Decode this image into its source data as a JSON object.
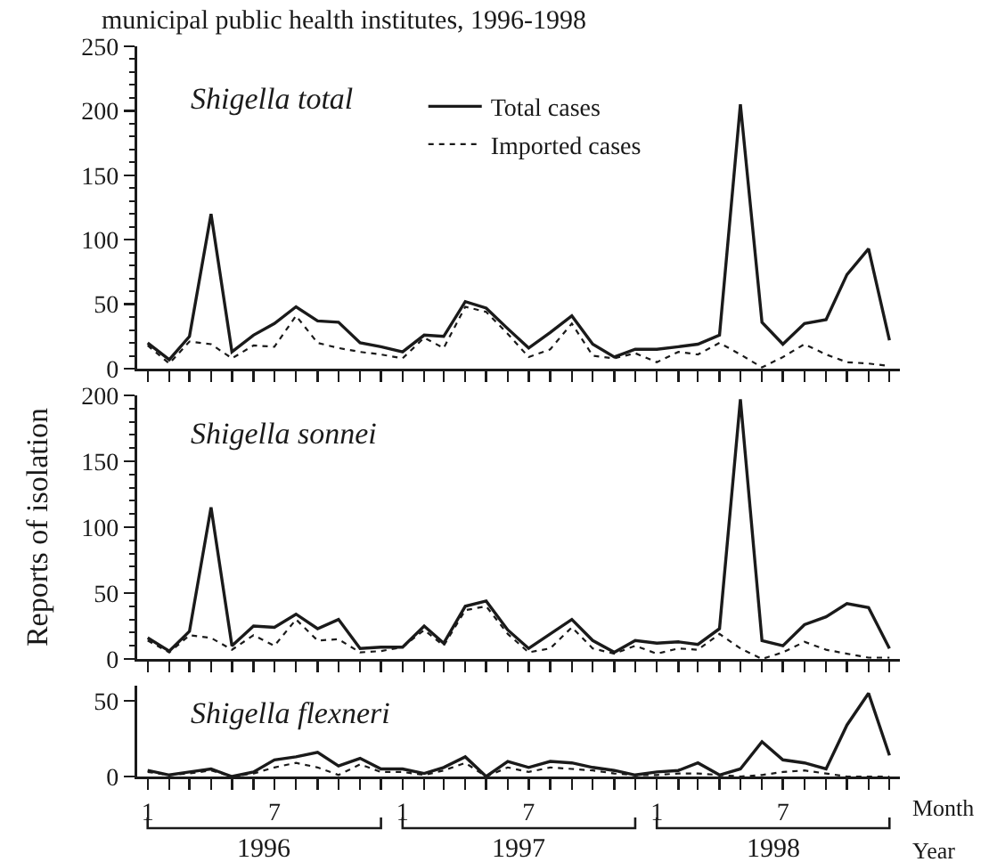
{
  "chart_data": [
    {
      "type": "line",
      "title": "Shigella total",
      "annotations": [
        "municipal public health institutes, 1996-1998"
      ],
      "legend": "top",
      "tick_labels": "y",
      "x": [
        "1996-01",
        "1996-02",
        "1996-03",
        "1996-04",
        "1996-05",
        "1996-06",
        "1996-07",
        "1996-08",
        "1996-09",
        "1996-10",
        "1996-11",
        "1996-12",
        "1997-01",
        "1997-02",
        "1997-03",
        "1997-04",
        "1997-05",
        "1997-06",
        "1997-07",
        "1997-08",
        "1997-09",
        "1997-10",
        "1997-11",
        "1997-12",
        "1998-01",
        "1998-02",
        "1998-03",
        "1998-04",
        "1998-05",
        "1998-06",
        "1998-07",
        "1998-08",
        "1998-09",
        "1998-10",
        "1998-11",
        "1998-12"
      ],
      "series": [
        {
          "name": "Total cases",
          "color": "#1a1a1a",
          "line_style": "solid",
          "values": [
            20,
            7,
            25,
            120,
            13,
            26,
            35,
            48,
            37,
            36,
            20,
            17,
            13,
            26,
            25,
            52,
            47,
            31,
            16,
            28,
            41,
            19,
            9,
            15,
            15,
            17,
            19,
            26,
            205,
            36,
            19,
            35,
            38,
            73,
            93,
            22
          ]
        },
        {
          "name": "Imported cases",
          "color": "#1a1a1a",
          "line_style": "dotted",
          "values": [
            18,
            4,
            21,
            19,
            8,
            18,
            17,
            41,
            20,
            16,
            13,
            11,
            8,
            24,
            16,
            48,
            44,
            27,
            9,
            15,
            35,
            10,
            8,
            12,
            5,
            13,
            11,
            20,
            11,
            1,
            9,
            19,
            11,
            5,
            4,
            2
          ]
        }
      ],
      "xlim": [
        "1995-12-17",
        "1998-12-16"
      ],
      "xticks": [
        {
          "value": "1996-01",
          "label": null
        },
        {
          "value": "1996-02",
          "label": null
        },
        {
          "value": "1996-03",
          "label": null
        },
        {
          "value": "1996-04",
          "label": null
        },
        {
          "value": "1996-05",
          "label": null
        },
        {
          "value": "1996-06",
          "label": null
        },
        {
          "value": "1996-07",
          "label": null
        },
        {
          "value": "1996-08",
          "label": null
        },
        {
          "value": "1996-09",
          "label": null
        },
        {
          "value": "1996-10",
          "label": null
        },
        {
          "value": "1996-11",
          "label": null
        },
        {
          "value": "1996-12",
          "label": null
        },
        {
          "value": "1997-01",
          "label": null
        },
        {
          "value": "1997-02",
          "label": null
        },
        {
          "value": "1997-03",
          "label": null
        },
        {
          "value": "1997-04",
          "label": null
        },
        {
          "value": "1997-05",
          "label": null
        },
        {
          "value": "1997-06",
          "label": null
        },
        {
          "value": "1997-07",
          "label": null
        },
        {
          "value": "1997-08",
          "label": null
        },
        {
          "value": "1997-09",
          "label": null
        },
        {
          "value": "1997-10",
          "label": null
        },
        {
          "value": "1997-11",
          "label": null
        },
        {
          "value": "1997-12",
          "label": null
        },
        {
          "value": "1998-01",
          "label": null
        },
        {
          "value": "1998-02",
          "label": null
        },
        {
          "value": "1998-03",
          "label": null
        },
        {
          "value": "1998-04",
          "label": null
        },
        {
          "value": "1998-05",
          "label": null
        },
        {
          "value": "1998-06",
          "label": null
        },
        {
          "value": "1998-07",
          "label": null
        },
        {
          "value": "1998-08",
          "label": null
        },
        {
          "value": "1998-09",
          "label": null
        },
        {
          "value": "1998-10",
          "label": null
        },
        {
          "value": "1998-11",
          "label": null
        },
        {
          "value": "1998-12",
          "label": null
        }
      ],
      "ylim": [
        0,
        250
      ],
      "yticks": [
        0,
        {
          "value": 10,
          "label": null
        },
        {
          "value": 20,
          "label": null
        },
        {
          "value": 30,
          "label": null
        },
        {
          "value": 40,
          "label": null
        },
        50,
        {
          "value": 60,
          "label": null
        },
        {
          "value": 70,
          "label": null
        },
        {
          "value": 80,
          "label": null
        },
        {
          "value": 90,
          "label": null
        },
        100,
        {
          "value": 110,
          "label": null
        },
        {
          "value": 120,
          "label": null
        },
        {
          "value": 130,
          "label": null
        },
        {
          "value": 140,
          "label": null
        },
        150,
        {
          "value": 160,
          "label": null
        },
        {
          "value": 170,
          "label": null
        },
        {
          "value": 180,
          "label": null
        },
        {
          "value": 190,
          "label": null
        },
        200,
        {
          "value": 210,
          "label": null
        },
        {
          "value": 220,
          "label": null
        },
        {
          "value": 230,
          "label": null
        },
        {
          "value": 240,
          "label": null
        },
        250
      ]
    },
    {
      "type": "line",
      "title": "Shigella sonnei",
      "ylabel": "Reports of isolation",
      "tick_labels": "y",
      "x": [
        "1996-01",
        "1996-02",
        "1996-03",
        "1996-04",
        "1996-05",
        "1996-06",
        "1996-07",
        "1996-08",
        "1996-09",
        "1996-10",
        "1996-11",
        "1996-12",
        "1997-01",
        "1997-02",
        "1997-03",
        "1997-04",
        "1997-05",
        "1997-06",
        "1997-07",
        "1997-08",
        "1997-09",
        "1997-10",
        "1997-11",
        "1997-12",
        "1998-01",
        "1998-02",
        "1998-03",
        "1998-04",
        "1998-05",
        "1998-06",
        "1998-07",
        "1998-08",
        "1998-09",
        "1998-10",
        "1998-11",
        "1998-12"
      ],
      "series": [
        {
          "color": "#1a1a1a",
          "line_style": "solid",
          "values": [
            16,
            6,
            21,
            115,
            10,
            25,
            24,
            34,
            23,
            30,
            8,
            9,
            9,
            25,
            12,
            40,
            44,
            22,
            8,
            19,
            30,
            14,
            5,
            14,
            12,
            13,
            11,
            23,
            197,
            14,
            10,
            26,
            32,
            42,
            39,
            8
          ]
        },
        {
          "color": "#1a1a1a",
          "line_style": "dotted",
          "values": [
            14,
            5,
            18,
            16,
            7,
            18,
            10,
            30,
            14,
            15,
            5,
            6,
            9,
            22,
            10,
            37,
            40,
            19,
            5,
            8,
            24,
            8,
            4,
            10,
            4,
            8,
            7,
            19,
            8,
            0,
            5,
            13,
            7,
            4,
            1,
            1
          ]
        }
      ],
      "xlim": [
        "1995-12-17",
        "1998-12-16"
      ],
      "xticks": [
        {
          "value": "1996-01",
          "label": null
        },
        {
          "value": "1996-02",
          "label": null
        },
        {
          "value": "1996-03",
          "label": null
        },
        {
          "value": "1996-04",
          "label": null
        },
        {
          "value": "1996-05",
          "label": null
        },
        {
          "value": "1996-06",
          "label": null
        },
        {
          "value": "1996-07",
          "label": null
        },
        {
          "value": "1996-08",
          "label": null
        },
        {
          "value": "1996-09",
          "label": null
        },
        {
          "value": "1996-10",
          "label": null
        },
        {
          "value": "1996-11",
          "label": null
        },
        {
          "value": "1996-12",
          "label": null
        },
        {
          "value": "1997-01",
          "label": null
        },
        {
          "value": "1997-02",
          "label": null
        },
        {
          "value": "1997-03",
          "label": null
        },
        {
          "value": "1997-04",
          "label": null
        },
        {
          "value": "1997-05",
          "label": null
        },
        {
          "value": "1997-06",
          "label": null
        },
        {
          "value": "1997-07",
          "label": null
        },
        {
          "value": "1997-08",
          "label": null
        },
        {
          "value": "1997-09",
          "label": null
        },
        {
          "value": "1997-10",
          "label": null
        },
        {
          "value": "1997-11",
          "label": null
        },
        {
          "value": "1997-12",
          "label": null
        },
        {
          "value": "1998-01",
          "label": null
        },
        {
          "value": "1998-02",
          "label": null
        },
        {
          "value": "1998-03",
          "label": null
        },
        {
          "value": "1998-04",
          "label": null
        },
        {
          "value": "1998-05",
          "label": null
        },
        {
          "value": "1998-06",
          "label": null
        },
        {
          "value": "1998-07",
          "label": null
        },
        {
          "value": "1998-08",
          "label": null
        },
        {
          "value": "1998-09",
          "label": null
        },
        {
          "value": "1998-10",
          "label": null
        },
        {
          "value": "1998-11",
          "label": null
        },
        {
          "value": "1998-12",
          "label": null
        }
      ],
      "ylim": [
        0,
        200
      ],
      "yticks": [
        0,
        {
          "value": 10,
          "label": null
        },
        {
          "value": 20,
          "label": null
        },
        {
          "value": 30,
          "label": null
        },
        {
          "value": 40,
          "label": null
        },
        50,
        {
          "value": 60,
          "label": null
        },
        {
          "value": 70,
          "label": null
        },
        {
          "value": 80,
          "label": null
        },
        {
          "value": 90,
          "label": null
        },
        100,
        {
          "value": 110,
          "label": null
        },
        {
          "value": 120,
          "label": null
        },
        {
          "value": 130,
          "label": null
        },
        {
          "value": 140,
          "label": null
        },
        150,
        {
          "value": 160,
          "label": null
        },
        {
          "value": 170,
          "label": null
        },
        {
          "value": 180,
          "label": null
        },
        {
          "value": 190,
          "label": null
        },
        200
      ]
    },
    {
      "type": "line",
      "title": "Shigella flexneri",
      "xlabel": "Month",
      "annotations": [
        "1996",
        "1997",
        "1998",
        "Year"
      ],
      "x": [
        "1996-01",
        "1996-02",
        "1996-03",
        "1996-04",
        "1996-05",
        "1996-06",
        "1996-07",
        "1996-08",
        "1996-09",
        "1996-10",
        "1996-11",
        "1996-12",
        "1997-01",
        "1997-02",
        "1997-03",
        "1997-04",
        "1997-05",
        "1997-06",
        "1997-07",
        "1997-08",
        "1997-09",
        "1997-10",
        "1997-11",
        "1997-12",
        "1998-01",
        "1998-02",
        "1998-03",
        "1998-04",
        "1998-05",
        "1998-06",
        "1998-07",
        "1998-08",
        "1998-09",
        "1998-10",
        "1998-11",
        "1998-12"
      ],
      "series": [
        {
          "color": "#1a1a1a",
          "line_style": "solid",
          "values": [
            4,
            1,
            3,
            5,
            0,
            3,
            11,
            13,
            16,
            7,
            12,
            5,
            5,
            2,
            6,
            13,
            0,
            10,
            6,
            10,
            9,
            6,
            4,
            1,
            3,
            4,
            9,
            1,
            5,
            23,
            11,
            9,
            5,
            34,
            55,
            14
          ]
        },
        {
          "color": "#1a1a1a",
          "line_style": "dotted",
          "values": [
            3,
            1,
            2,
            4,
            0,
            2,
            6,
            9,
            6,
            1,
            8,
            3,
            3,
            1,
            4,
            9,
            0,
            6,
            3,
            6,
            5,
            4,
            2,
            1,
            1,
            2,
            2,
            1,
            0,
            1,
            3,
            4,
            2,
            0,
            0,
            0
          ]
        }
      ],
      "xlim": [
        "1995-12-17",
        "1998-12-16"
      ],
      "xticks": [
        {
          "value": "1996-01",
          "label": "1"
        },
        {
          "value": "1996-02",
          "label": null
        },
        {
          "value": "1996-03",
          "label": null
        },
        {
          "value": "1996-04",
          "label": null
        },
        {
          "value": "1996-05",
          "label": null
        },
        {
          "value": "1996-06",
          "label": null
        },
        {
          "value": "1996-07",
          "label": "7"
        },
        {
          "value": "1996-08",
          "label": null
        },
        {
          "value": "1996-09",
          "label": null
        },
        {
          "value": "1996-10",
          "label": null
        },
        {
          "value": "1996-11",
          "label": null
        },
        {
          "value": "1996-12",
          "label": null
        },
        {
          "value": "1997-01",
          "label": "1"
        },
        {
          "value": "1997-02",
          "label": null
        },
        {
          "value": "1997-03",
          "label": null
        },
        {
          "value": "1997-04",
          "label": null
        },
        {
          "value": "1997-05",
          "label": null
        },
        {
          "value": "1997-06",
          "label": null
        },
        {
          "value": "1997-07",
          "label": "7"
        },
        {
          "value": "1997-08",
          "label": null
        },
        {
          "value": "1997-09",
          "label": null
        },
        {
          "value": "1997-10",
          "label": null
        },
        {
          "value": "1997-11",
          "label": null
        },
        {
          "value": "1997-12",
          "label": null
        },
        {
          "value": "1998-01",
          "label": "1"
        },
        {
          "value": "1998-02",
          "label": null
        },
        {
          "value": "1998-03",
          "label": null
        },
        {
          "value": "1998-04",
          "label": null
        },
        {
          "value": "1998-05",
          "label": null
        },
        {
          "value": "1998-06",
          "label": null
        },
        {
          "value": "1998-07",
          "label": "7"
        },
        {
          "value": "1998-08",
          "label": null
        },
        {
          "value": "1998-09",
          "label": null
        },
        {
          "value": "1998-10",
          "label": null
        },
        {
          "value": "1998-11",
          "label": null
        },
        {
          "value": "1998-12",
          "label": null
        }
      ],
      "ylim": [
        0,
        60
      ],
      "yticks": [
        0,
        50
      ]
    }
  ]
}
